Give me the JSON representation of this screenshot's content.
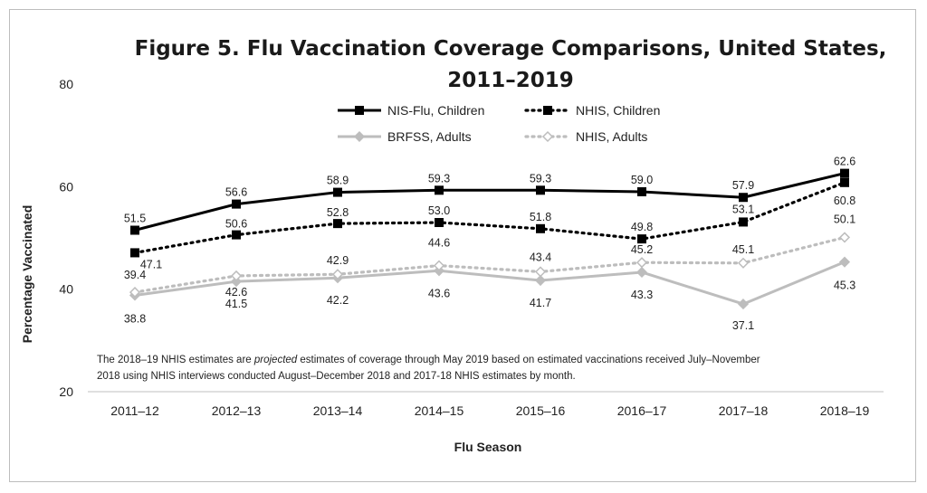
{
  "chart_data": {
    "type": "line",
    "title_lines": [
      "Figure 5. Flu Vaccination Coverage Comparisons, United States,",
      "2011–2019"
    ],
    "xlabel": "Flu Season",
    "ylabel": "Percentage Vaccinated",
    "categories": [
      "2011–12",
      "2012–13",
      "2013–14",
      "2014–15",
      "2015–16",
      "2016–17",
      "2017–18",
      "2018–19"
    ],
    "ylim": [
      20,
      80
    ],
    "yticks": [
      "20",
      "40",
      "60",
      "80"
    ],
    "grid": false,
    "legend_position": "top-center",
    "series": [
      {
        "name": "NIS-Flu, Children",
        "values": [
          51.5,
          56.6,
          58.9,
          59.3,
          59.3,
          59.0,
          57.9,
          62.6
        ],
        "labels": [
          "51.5",
          "56.6",
          "58.9",
          "59.3",
          "59.3",
          "59.0",
          "57.9",
          "62.6"
        ],
        "color": "#000000",
        "style": "solid",
        "marker": "square"
      },
      {
        "name": "NHIS, Children",
        "values": [
          47.1,
          50.6,
          52.8,
          53.0,
          51.8,
          49.8,
          53.1,
          60.8
        ],
        "labels": [
          "47.1",
          "50.6",
          "52.8",
          "53.0",
          "51.8",
          "49.8",
          "53.1",
          "60.8"
        ],
        "color": "#000000",
        "style": "dotted",
        "marker": "square"
      },
      {
        "name": "BRFSS, Adults",
        "values": [
          38.8,
          41.5,
          42.2,
          43.6,
          41.7,
          43.3,
          37.1,
          45.3
        ],
        "labels": [
          "38.8",
          "41.5",
          "42.2",
          "43.6",
          "41.7",
          "43.3",
          "37.1",
          "45.3"
        ],
        "color": "#bdbdbd",
        "style": "solid",
        "marker": "diamond"
      },
      {
        "name": "NHIS, Adults",
        "values": [
          39.4,
          42.6,
          42.9,
          44.6,
          43.4,
          45.2,
          45.1,
          50.1
        ],
        "labels": [
          "39.4",
          "42.6",
          "42.9",
          "44.6",
          "43.4",
          "45.2",
          "45.1",
          "50.1"
        ],
        "color": "#bdbdbd",
        "style": "dotted",
        "marker": "diamond"
      }
    ],
    "note": {
      "line1_before": "The 2018–19 NHIS estimates are ",
      "line1_italic": "projected",
      "line1_after": " estimates of coverage through May 2019 based on estimated vaccinations received July–November",
      "line2": "2018 using NHIS interviews conducted August–December 2018 and 2017-18 NHIS estimates by month."
    }
  }
}
